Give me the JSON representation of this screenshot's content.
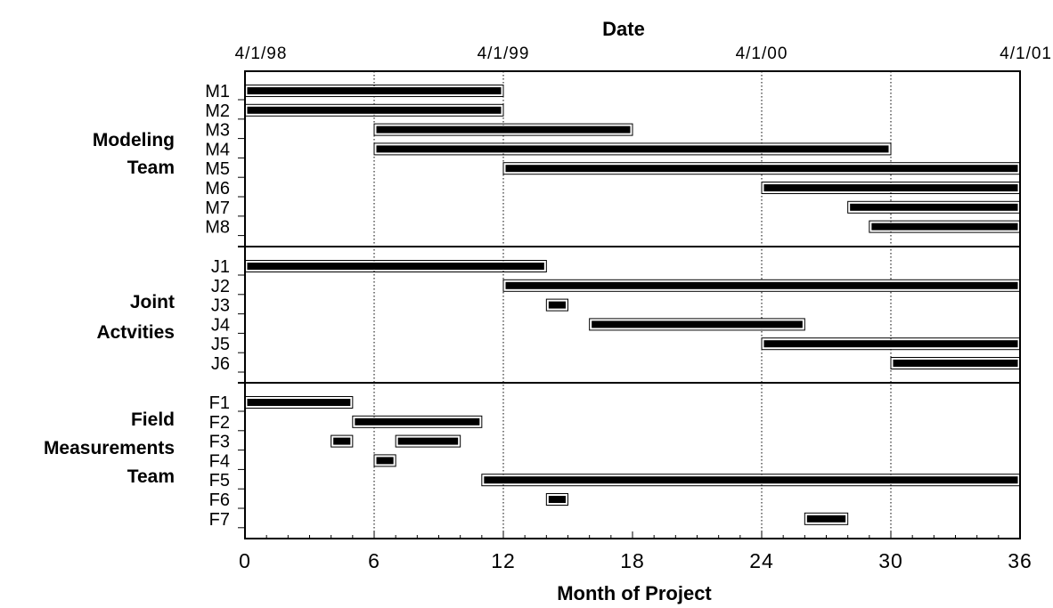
{
  "chart_data": {
    "type": "gantt",
    "top_axis_title": "Date",
    "xlabel": "Month of Project",
    "xlim": [
      0,
      36
    ],
    "x_ticks": [
      "0",
      "6",
      "12",
      "18",
      "24",
      "30",
      "36"
    ],
    "date_ticks": [
      {
        "month": 0,
        "label": "4/1/98"
      },
      {
        "month": 12,
        "label": "4/1/99"
      },
      {
        "month": 24,
        "label": "4/1/00"
      },
      {
        "month": 36,
        "label": "4/1/01"
      }
    ],
    "gridlines": [
      6,
      12,
      24,
      30
    ],
    "groups": [
      {
        "label_lines": [
          "Modeling",
          "Team"
        ],
        "tasks": [
          {
            "label": "M1",
            "start": 0,
            "end": 12
          },
          {
            "label": "M2",
            "start": 0,
            "end": 12
          },
          {
            "label": "M3",
            "start": 6,
            "end": 18
          },
          {
            "label": "M4",
            "start": 6,
            "end": 30
          },
          {
            "label": "M5",
            "start": 12,
            "end": 36
          },
          {
            "label": "M6",
            "start": 24,
            "end": 36
          },
          {
            "label": "M7",
            "start": 28,
            "end": 36
          },
          {
            "label": "M8",
            "start": 29,
            "end": 36
          }
        ]
      },
      {
        "label_lines": [
          "Joint",
          "Actvities"
        ],
        "tasks": [
          {
            "label": "J1",
            "start": 0,
            "end": 14
          },
          {
            "label": "J2",
            "start": 12,
            "end": 36
          },
          {
            "label": "J3",
            "start": 14,
            "end": 15
          },
          {
            "label": "J4",
            "start": 16,
            "end": 26
          },
          {
            "label": "J5",
            "start": 24,
            "end": 36
          },
          {
            "label": "J6",
            "start": 30,
            "end": 36
          }
        ]
      },
      {
        "label_lines": [
          "Field",
          "Measurements",
          "Team"
        ],
        "tasks": [
          {
            "label": "F1",
            "start": 0,
            "end": 5
          },
          {
            "label": "F2",
            "start": 5,
            "end": 11
          },
          {
            "label": "F3",
            "segments": [
              [
                4,
                5
              ],
              [
                7,
                10
              ]
            ]
          },
          {
            "label": "F4",
            "start": 6,
            "end": 7
          },
          {
            "label": "F5",
            "start": 11,
            "end": 36
          },
          {
            "label": "F6",
            "start": 14,
            "end": 15
          },
          {
            "label": "F7",
            "start": 26,
            "end": 28
          }
        ]
      }
    ]
  }
}
